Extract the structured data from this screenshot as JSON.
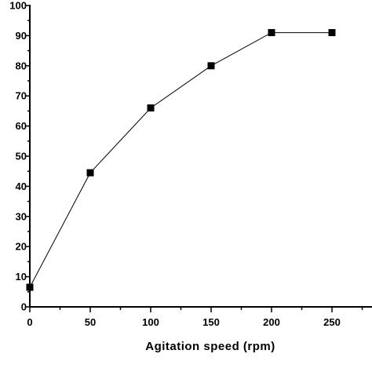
{
  "chart_data": {
    "type": "line",
    "title": "",
    "xlabel": "Agitation speed (rpm)",
    "ylabel": "",
    "xlim": [
      0,
      290
    ],
    "ylim": [
      0,
      100
    ],
    "x_ticks": [
      0,
      50,
      100,
      150,
      200,
      250
    ],
    "x_tick_labels": [
      "0",
      "50",
      "100",
      "150",
      "200",
      "250"
    ],
    "y_ticks": [
      0,
      10,
      20,
      30,
      40,
      50,
      60,
      70,
      80,
      90,
      100
    ],
    "y_tick_labels": [
      "0",
      "10",
      "20",
      "30",
      "40",
      "50",
      "60",
      "70",
      "80",
      "90",
      "100"
    ],
    "grid": false,
    "series": [
      {
        "x": [
          0,
          50,
          100,
          150,
          200,
          250
        ],
        "y": [
          6.5,
          44.5,
          66,
          80,
          91,
          91
        ],
        "marker": "square",
        "color": "#000000"
      }
    ]
  }
}
